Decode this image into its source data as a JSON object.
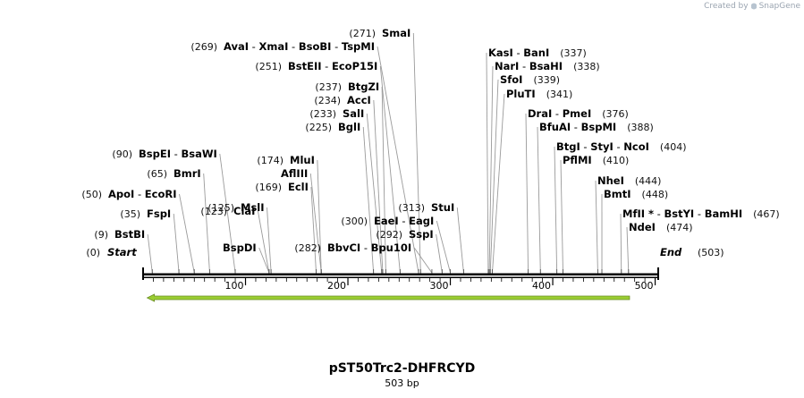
{
  "credit": {
    "prefix": "Created by",
    "brand": "SnapGene",
    "icon": "snapgene-logo-icon"
  },
  "title": "pST50Trc2-DHFRCYD",
  "length_label": "503 bp",
  "sequence_length": 503,
  "ruler": {
    "ticks": [
      100,
      200,
      300,
      400,
      500
    ]
  },
  "colors": {
    "backbone": "#000000",
    "feature": "#9acd32",
    "feature_outline": "#6b8e23",
    "line": "#9a9a9a"
  },
  "feature": {
    "start": 4,
    "end": 475,
    "direction": "reverse"
  },
  "ends": {
    "start": {
      "label": "Start",
      "pos": "(0)"
    },
    "end": {
      "label": "End",
      "pos": "(503)"
    }
  },
  "site_labels": [
    {
      "names": [
        "BstBI"
      ],
      "pos": "(9)",
      "sites": [
        9
      ],
      "side": "left"
    },
    {
      "names": [
        "FspI"
      ],
      "pos": "(35)",
      "sites": [
        35
      ],
      "side": "left"
    },
    {
      "names": [
        "ApoI",
        "EcoRI"
      ],
      "pos": "(50)",
      "sites": [
        50
      ],
      "side": "left"
    },
    {
      "names": [
        "BmrI"
      ],
      "pos": "(65)",
      "sites": [
        65
      ],
      "side": "left"
    },
    {
      "names": [
        "BspEI",
        "BsaWI"
      ],
      "pos": "(90)",
      "sites": [
        90
      ],
      "side": "left"
    },
    {
      "names": [
        "ClaI"
      ],
      "pos": "(123)",
      "sites": [
        123
      ],
      "side": "left"
    },
    {
      "names": [
        "BspDI"
      ],
      "pos": "",
      "sites": [
        123
      ],
      "side": "left"
    },
    {
      "names": [
        "MslI"
      ],
      "pos": "(125)",
      "sites": [
        125
      ],
      "side": "left"
    },
    {
      "names": [
        "EclI"
      ],
      "pos": "(169)",
      "sites": [
        169
      ],
      "side": "left"
    },
    {
      "names": [
        "AflIII"
      ],
      "pos": "",
      "sites": [
        174
      ],
      "side": "left"
    },
    {
      "names": [
        "MluI"
      ],
      "pos": "(174)",
      "sites": [
        174
      ],
      "side": "left"
    },
    {
      "names": [
        "BglI"
      ],
      "pos": "(225)",
      "sites": [
        225
      ],
      "side": "left"
    },
    {
      "names": [
        "SalI"
      ],
      "pos": "(233)",
      "sites": [
        233
      ],
      "side": "left"
    },
    {
      "names": [
        "AccI"
      ],
      "pos": "(234)",
      "sites": [
        234
      ],
      "side": "left"
    },
    {
      "names": [
        "BtgZI"
      ],
      "pos": "(237)",
      "sites": [
        237
      ],
      "side": "left"
    },
    {
      "names": [
        "BstEII",
        "EcoP15I"
      ],
      "pos": "(251)",
      "sites": [
        251
      ],
      "side": "left"
    },
    {
      "names": [
        "AvaI",
        "XmaI",
        "BsoBI",
        "TspMI"
      ],
      "pos": "(269)",
      "sites": [
        269
      ],
      "side": "left"
    },
    {
      "names": [
        "SmaI"
      ],
      "pos": "(271)",
      "sites": [
        271
      ],
      "side": "left"
    },
    {
      "names": [
        "BbvCI",
        "Bpu10I"
      ],
      "pos": "(282)",
      "sites": [
        282
      ],
      "side": "left"
    },
    {
      "names": [
        "SspI"
      ],
      "pos": "(292)",
      "sites": [
        292
      ],
      "side": "left"
    },
    {
      "names": [
        "EaeI",
        "EagI"
      ],
      "pos": "(300)",
      "sites": [
        300
      ],
      "side": "left"
    },
    {
      "names": [
        "StuI"
      ],
      "pos": "(313)",
      "sites": [
        313
      ],
      "side": "left"
    },
    {
      "names": [
        "KasI",
        "BanI"
      ],
      "pos": "(337)",
      "sites": [
        337
      ],
      "side": "right"
    },
    {
      "names": [
        "NarI",
        "BsaHI"
      ],
      "pos": "(338)",
      "sites": [
        338
      ],
      "side": "right"
    },
    {
      "names": [
        "SfoI"
      ],
      "pos": "(339)",
      "sites": [
        339
      ],
      "side": "right"
    },
    {
      "names": [
        "PluTI"
      ],
      "pos": "(341)",
      "sites": [
        341
      ],
      "side": "right"
    },
    {
      "names": [
        "DraI",
        "PmeI"
      ],
      "pos": "(376)",
      "sites": [
        376
      ],
      "side": "right"
    },
    {
      "names": [
        "BfuAI",
        "BspMI"
      ],
      "pos": "(388)",
      "sites": [
        388
      ],
      "side": "right"
    },
    {
      "names": [
        "BtgI",
        "StyI",
        "NcoI"
      ],
      "pos": "(404)",
      "sites": [
        404
      ],
      "side": "right"
    },
    {
      "names": [
        "PflMI"
      ],
      "pos": "(410)",
      "sites": [
        410
      ],
      "side": "right"
    },
    {
      "names": [
        "NheI"
      ],
      "pos": "(444)",
      "sites": [
        444
      ],
      "side": "right"
    },
    {
      "names": [
        "BmtI"
      ],
      "pos": "(448)",
      "sites": [
        448
      ],
      "side": "right"
    },
    {
      "names": [
        "MfII *",
        "BstYI",
        "BamHI"
      ],
      "pos": "(467)",
      "sites": [
        467
      ],
      "side": "right"
    },
    {
      "names": [
        "NdeI"
      ],
      "pos": "(474)",
      "sites": [
        474
      ],
      "side": "right"
    }
  ]
}
